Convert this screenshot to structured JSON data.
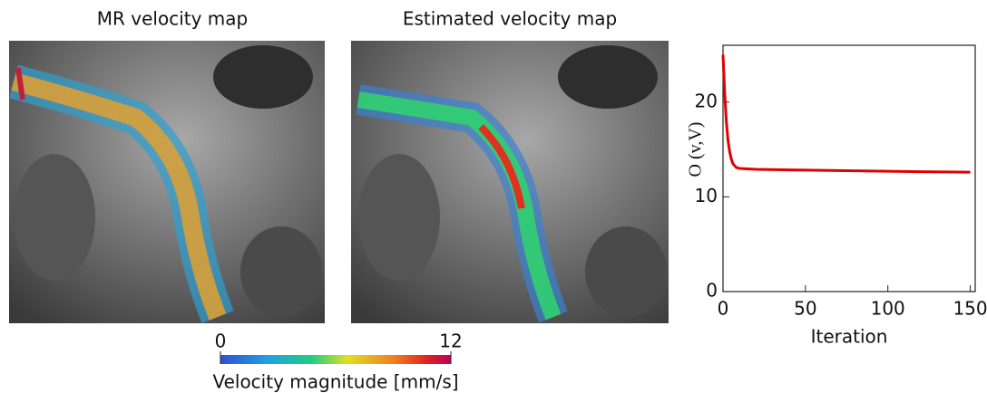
{
  "panels": [
    {
      "title": "MR velocity map"
    },
    {
      "title": "Estimated velocity map"
    }
  ],
  "colorbar": {
    "label": "Velocity magnitude [mm/s]",
    "ticks": [
      0,
      12
    ]
  },
  "chart_data": {
    "type": "line",
    "xlabel": "Iteration",
    "ylabel": "O (v,V)",
    "x": [
      0,
      1,
      2,
      3,
      4,
      5,
      6,
      8,
      10,
      15,
      20,
      40,
      60,
      80,
      100,
      120,
      150
    ],
    "values": [
      25,
      21,
      18,
      16,
      14.8,
      14,
      13.5,
      13.1,
      13,
      12.95,
      12.9,
      12.85,
      12.8,
      12.75,
      12.7,
      12.65,
      12.6
    ],
    "color": "#e00000",
    "xlim": [
      0,
      153
    ],
    "ylim": [
      0,
      26
    ],
    "xticks": [
      0,
      50,
      100,
      150
    ],
    "yticks": [
      0,
      10,
      20
    ]
  }
}
